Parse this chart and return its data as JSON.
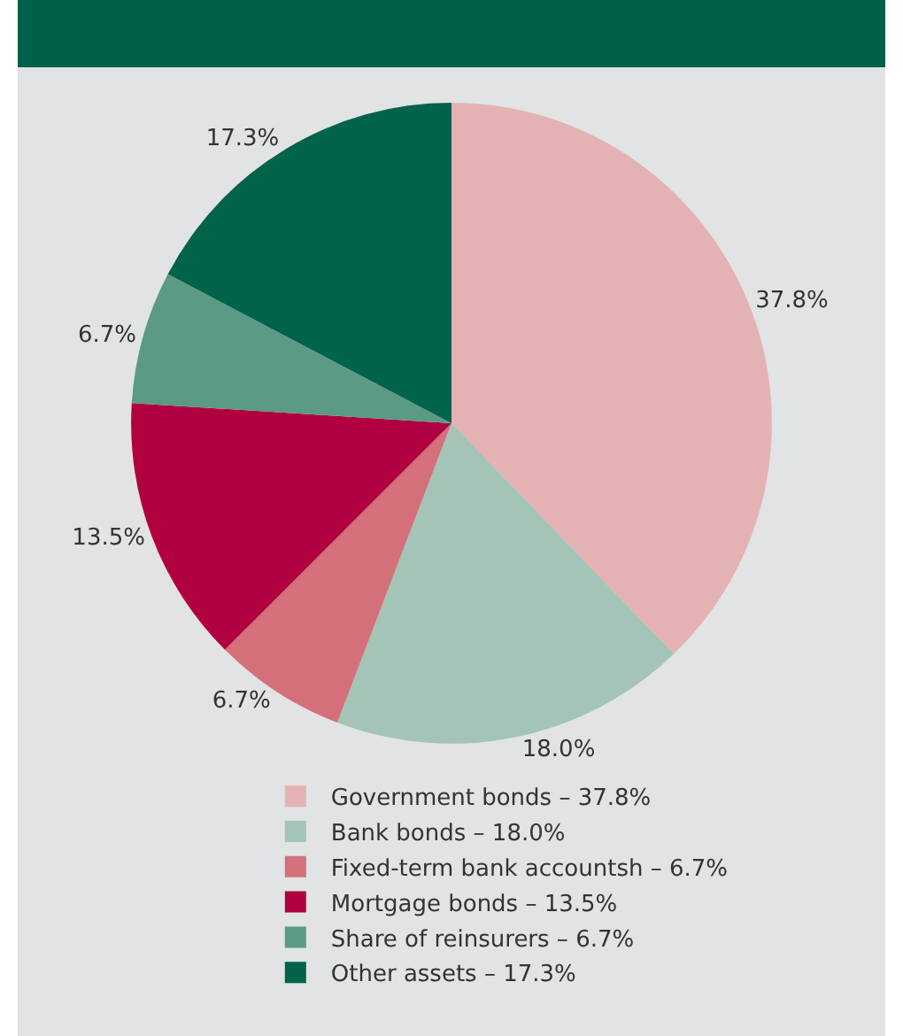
{
  "chart_data": {
    "type": "pie",
    "categories": [
      "Government bonds – 37.8%",
      "Bank bonds – 18.0%",
      "Fixed-term bank accountsh – 6.7%",
      "Mortgage bonds – 13.5%",
      "Share of reinsurers – 6.7%",
      "Other assets – 17.3%"
    ],
    "values": [
      37.8,
      18.0,
      6.7,
      13.5,
      6.7,
      17.3
    ],
    "value_labels": [
      "37.8%",
      "18.0%",
      "6.7%",
      "13.5%",
      "6.7%",
      "17.3%"
    ],
    "colors": [
      "#e4b2b3",
      "#a3c4b7",
      "#d4707a",
      "#b1003f",
      "#5b9a85",
      "#00634a"
    ],
    "legend": "bottom"
  }
}
